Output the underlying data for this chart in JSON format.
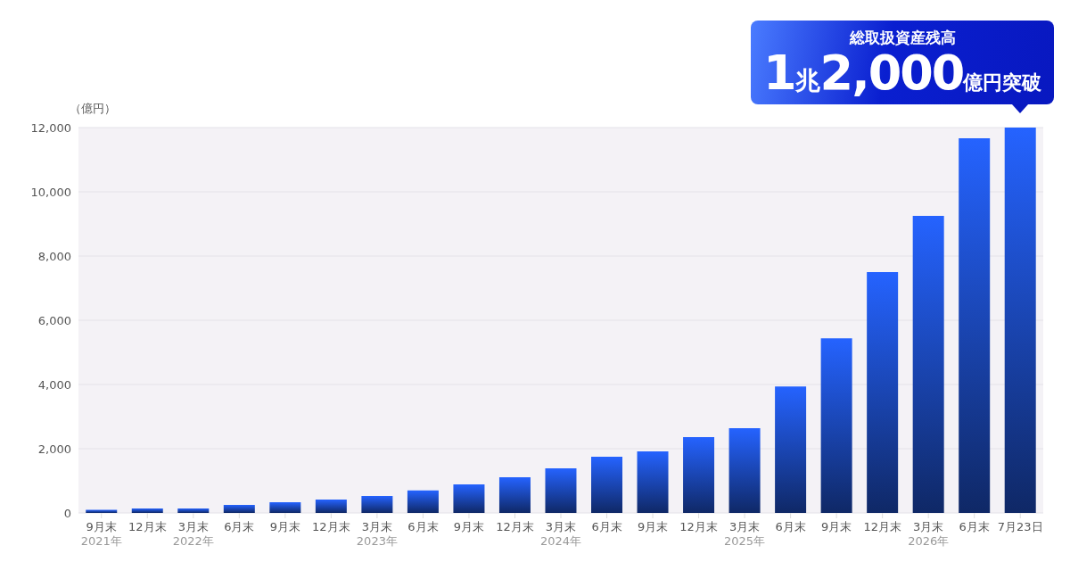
{
  "chart_data": {
    "type": "bar",
    "ylabel": "（億円）",
    "categories": [
      "9月末\n2021年",
      "12月末",
      "3月末\n2022年",
      "6月末",
      "9月末",
      "12月末",
      "3月末\n2023年",
      "6月末",
      "9月末",
      "12月末",
      "3月末\n2024年",
      "6月末",
      "9月末",
      "12月末",
      "3月末\n2025年",
      "6月末",
      "9月末",
      "12月末",
      "3月末\n2026年",
      "6月末",
      "7月23日"
    ],
    "values": [
      100,
      140,
      140,
      250,
      330,
      420,
      530,
      700,
      890,
      1110,
      1390,
      1750,
      1920,
      2360,
      2640,
      3940,
      5440,
      7500,
      9250,
      11670,
      12000
    ],
    "color": "#2563ff",
    "ylim": [
      0,
      12000
    ],
    "yticks": [
      0,
      {
        "value": 2000,
        "label": "2,000"
      },
      {
        "value": 4000,
        "label": "4,000"
      },
      {
        "value": 6000,
        "label": "6,000"
      },
      {
        "value": 8000,
        "label": "8,000"
      },
      {
        "value": 10000,
        "label": "10,000"
      },
      {
        "value": 12000,
        "label": "12,000"
      }
    ],
    "grid": "y",
    "annotations": [
      "総取扱資産残高",
      {
        "text": "1兆2,000億円突破",
        "x": "7月23日",
        "y": 12000
      }
    ]
  }
}
